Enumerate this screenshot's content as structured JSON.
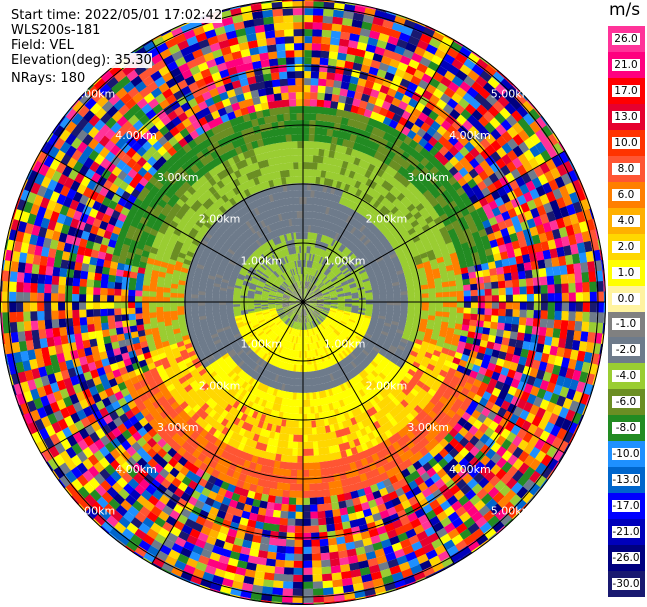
{
  "header": {
    "start_time": "Start time: 2022/05/01 17:02:42",
    "instrument": "WLS200s-181",
    "field": "Field: VEL",
    "elevation": "Elevation(deg): 35.30",
    "nrays": "NRays: 180"
  },
  "ppi": {
    "range_rings_km": [
      1.0,
      2.0,
      3.0,
      4.0,
      5.0
    ],
    "ring_labels": [
      "1.00km",
      "2.00km",
      "3.00km",
      "4.00km",
      "5.00km"
    ],
    "spoke_angles_deg": [
      0,
      30,
      60,
      90,
      120,
      150,
      180,
      210,
      240,
      270,
      300,
      330
    ]
  },
  "colorbar": {
    "units": "m/s",
    "ticks": [
      "26.0",
      "21.0",
      "17.0",
      "13.0",
      "10.0",
      "8.0",
      "6.0",
      "4.0",
      "2.0",
      "1.0",
      "0.0",
      "-1.0",
      "-2.0",
      "-4.0",
      "-6.0",
      "-8.0",
      "-10.0",
      "-13.0",
      "-17.0",
      "-21.0",
      "-26.0",
      "-30.0"
    ],
    "colors": [
      "#ff3399",
      "#ff007f",
      "#ff0000",
      "#e6002e",
      "#ff3300",
      "#ff5533",
      "#ff7f00",
      "#ffb000",
      "#ffd700",
      "#ffff00",
      "#fff3a0",
      "#808080",
      "#6e7b8b",
      "#9acd32",
      "#6b8e23",
      "#228b22",
      "#1e90ff",
      "#0066cc",
      "#0000ff",
      "#0000bb",
      "#000080",
      "#191970"
    ]
  }
}
